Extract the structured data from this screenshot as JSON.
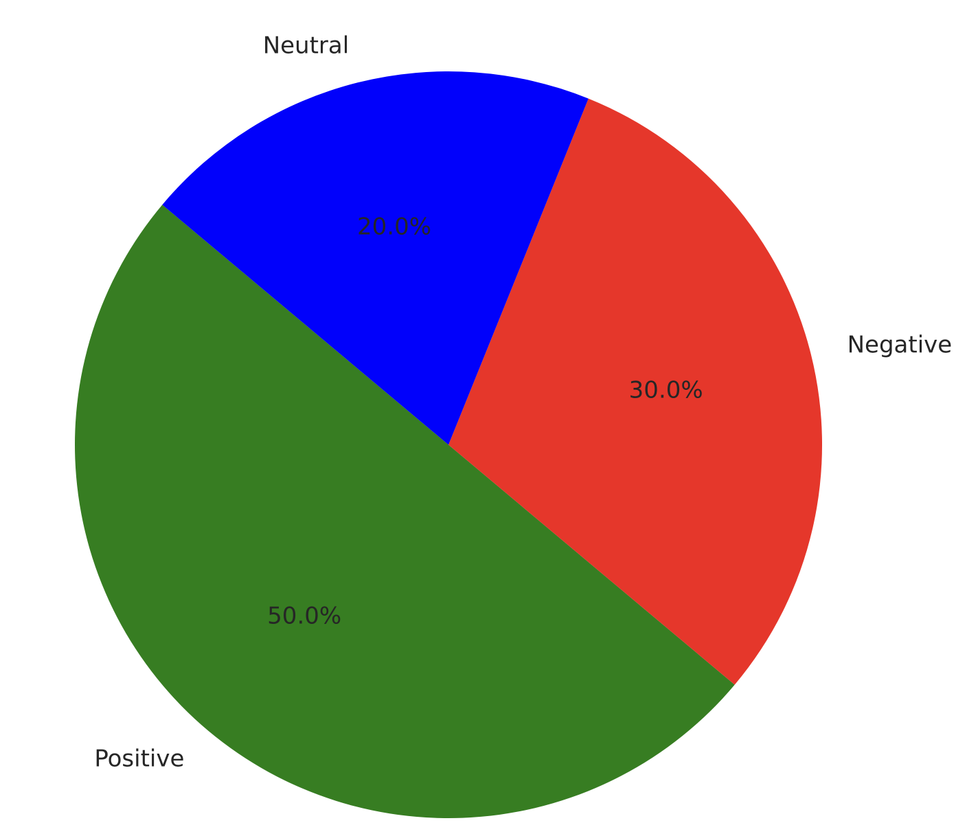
{
  "chart_data": {
    "type": "pie",
    "title": "",
    "legend": null,
    "start_angle": 140,
    "counterclock": true,
    "label_distance": 1.1,
    "pct_distance": 0.6,
    "text_color": "#262626",
    "background_color": "#ffffff",
    "slices": [
      {
        "label": "Positive",
        "value": 50.0,
        "pct_label": "50.0%",
        "color": "#377D22"
      },
      {
        "label": "Negative",
        "value": 30.0,
        "pct_label": "30.0%",
        "color": "#E5372B"
      },
      {
        "label": "Neutral",
        "value": 20.0,
        "pct_label": "20.0%",
        "color": "#0101FB"
      }
    ]
  }
}
